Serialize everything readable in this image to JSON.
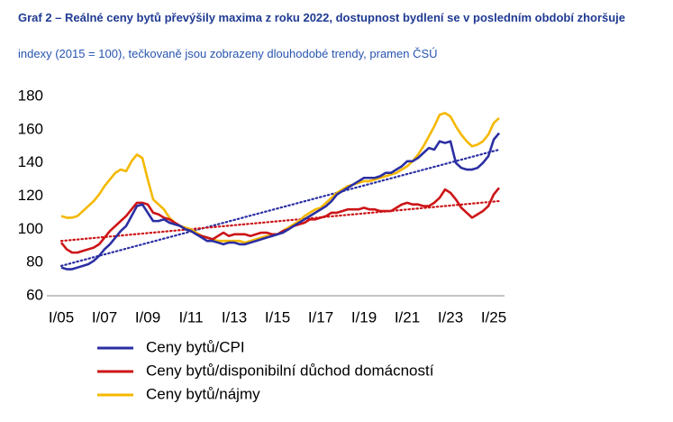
{
  "chart_data": {
    "type": "line",
    "title": "Graf 2 – Reálné ceny bytů převýšily maxima z roku 2022, dostupnost bydlení se v posledním období zhoršuje",
    "subtitle": "indexy (2015 = 100), tečkovaně jsou zobrazeny dlouhodobé trendy, pramen ČSÚ",
    "categories": [
      "I/05",
      null,
      null,
      null,
      null,
      null,
      null,
      null,
      "I/07",
      null,
      null,
      null,
      null,
      null,
      null,
      null,
      "I/09",
      null,
      null,
      null,
      null,
      null,
      null,
      null,
      "I/11",
      null,
      null,
      null,
      null,
      null,
      null,
      null,
      "I/13",
      null,
      null,
      null,
      null,
      null,
      null,
      null,
      "I/15",
      null,
      null,
      null,
      null,
      null,
      null,
      null,
      "I/17",
      null,
      null,
      null,
      null,
      null,
      null,
      null,
      "I/19",
      null,
      null,
      null,
      null,
      null,
      null,
      null,
      "I/21",
      null,
      null,
      null,
      null,
      null,
      null,
      null,
      "I/23",
      null,
      null,
      null,
      null,
      null,
      null,
      null,
      "I/25",
      null
    ],
    "series": [
      {
        "name": "Ceny bytů/CPI",
        "color": "#2b2fa3",
        "values": [
          77,
          76,
          76,
          77,
          78,
          79,
          81,
          84,
          88,
          91,
          95,
          99,
          102,
          108,
          114,
          115,
          110,
          105,
          105,
          106,
          104,
          103,
          102,
          100,
          99,
          97,
          95,
          93,
          93,
          92,
          91,
          92,
          92,
          91,
          91,
          92,
          93,
          94,
          95,
          96,
          97,
          98,
          100,
          102,
          104,
          106,
          108,
          110,
          112,
          114,
          117,
          121,
          123,
          125,
          127,
          129,
          131,
          131,
          131,
          132,
          134,
          134,
          136,
          138,
          141,
          141,
          143,
          146,
          149,
          148,
          153,
          152,
          153,
          140,
          137,
          136,
          136,
          137,
          140,
          144,
          154,
          158
        ]
      },
      {
        "name": "Ceny bytů/disponibilní důchod domácností",
        "color": "#cc1417",
        "values": [
          92,
          88,
          86,
          86,
          87,
          88,
          89,
          91,
          95,
          99,
          102,
          105,
          108,
          112,
          116,
          116,
          115,
          110,
          109,
          107,
          106,
          104,
          102,
          100,
          99,
          97,
          96,
          95,
          94,
          96,
          98,
          96,
          97,
          97,
          97,
          96,
          97,
          98,
          98,
          97,
          97,
          99,
          100,
          102,
          103,
          104,
          106,
          106,
          107,
          108,
          110,
          110,
          111,
          112,
          112,
          112,
          113,
          112,
          112,
          111,
          111,
          111,
          113,
          115,
          116,
          115,
          115,
          114,
          114,
          116,
          119,
          124,
          122,
          118,
          113,
          110,
          107,
          109,
          111,
          114,
          121,
          125
        ]
      },
      {
        "name": "Ceny bytů/nájmy",
        "color": "#f5b800",
        "values": [
          108,
          107,
          107,
          108,
          111,
          114,
          117,
          121,
          126,
          130,
          134,
          136,
          135,
          141,
          145,
          143,
          130,
          118,
          115,
          112,
          107,
          104,
          102,
          101,
          100,
          98,
          96,
          95,
          94,
          93,
          93,
          93,
          93,
          93,
          92,
          93,
          94,
          95,
          96,
          96,
          97,
          99,
          101,
          103,
          105,
          108,
          110,
          112,
          113,
          116,
          119,
          122,
          124,
          126,
          127,
          128,
          129,
          129,
          130,
          131,
          132,
          133,
          134,
          136,
          138,
          141,
          145,
          150,
          156,
          162,
          169,
          170,
          168,
          162,
          157,
          153,
          150,
          151,
          153,
          157,
          164,
          167
        ]
      }
    ],
    "trends": [
      {
        "color": "#2b2fa3",
        "style": "dotted",
        "start": 78,
        "end": 148
      },
      {
        "color": "#cc1417",
        "style": "dotted",
        "start": 93,
        "end": 117
      }
    ],
    "ylim": [
      60,
      180
    ],
    "yticks": [
      60,
      80,
      100,
      120,
      140,
      160,
      180
    ],
    "grid": false
  }
}
